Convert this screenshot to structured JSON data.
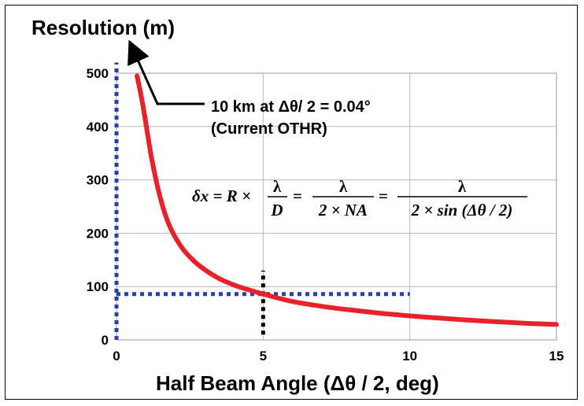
{
  "chart_data": {
    "type": "line",
    "ylabel": "Resolution (m)",
    "xlabel": "Half Beam Angle (Δθ / 2, deg)",
    "xlim": [
      0,
      15
    ],
    "ylim": [
      0,
      500
    ],
    "x_ticks": [
      0,
      5,
      10,
      15
    ],
    "y_ticks": [
      0,
      100,
      200,
      300,
      400,
      500
    ],
    "grid": true,
    "series": [
      {
        "color": "#e8212a",
        "x": [
          0.7,
          0.9,
          1.2,
          1.5,
          1.8,
          2.2,
          2.6,
          3.0,
          3.5,
          4.0,
          4.5,
          5.0,
          6.0,
          7.0,
          8.0,
          9.0,
          10.0,
          11.0,
          12.0,
          13.0,
          14.0,
          15.0
        ],
        "y": [
          495,
          440,
          340,
          265,
          215,
          175,
          150,
          132,
          115,
          103,
          94,
          86,
          72,
          63,
          56,
          50,
          45,
          41,
          37,
          34,
          31,
          29
        ]
      }
    ],
    "guides": [
      {
        "orientation": "horizontal",
        "y": 86,
        "x_range": [
          0,
          10
        ],
        "color": "#2b3fa8"
      },
      {
        "orientation": "vertical",
        "x": 5,
        "y_range": [
          10,
          130
        ],
        "color": "#000000"
      },
      {
        "orientation": "vertical",
        "x": 0,
        "y_range": [
          0,
          520
        ],
        "color": "#2b3fa8"
      }
    ],
    "annotations": {
      "arrow_label_line1": "10 km at Δθ/ 2 = 0.04°",
      "arrow_label_line2": "(Current OTHR)"
    },
    "formula": {
      "lhs": "δx = R ×",
      "frac1_num": "λ",
      "frac1_den": "D",
      "eq1": "=",
      "frac2_num": "λ",
      "frac2_den": "2 × NA",
      "eq2": "=",
      "frac3_num": "λ",
      "frac3_den": "2 × sin (Δθ / 2)"
    }
  }
}
